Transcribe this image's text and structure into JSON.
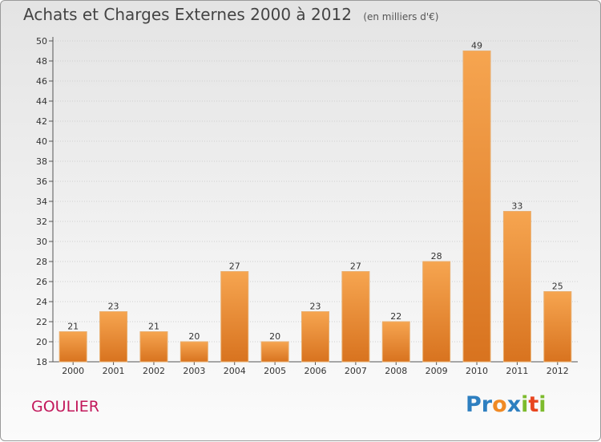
{
  "header": {
    "title": "Achats et Charges Externes 2000 à 2012",
    "unit": "(en milliers d'€)"
  },
  "footer": {
    "city": "GOULIER",
    "logo_text": "Proxiti"
  },
  "colors": {
    "bar_top": "#f6a550",
    "bar_bottom": "#d8731f",
    "city": "#c2185b",
    "logo": [
      "#2e7fc0",
      "#2e7fc0",
      "#f08a24",
      "#2e7fc0",
      "#7dbb2d",
      "#e8451f",
      "#7dbb2d"
    ]
  },
  "chart_data": {
    "type": "bar",
    "title": "Achats et Charges Externes 2000 à 2012",
    "subtitle": "(en milliers d'€)",
    "xlabel": "",
    "ylabel": "",
    "categories": [
      "2000",
      "2001",
      "2002",
      "2003",
      "2004",
      "2005",
      "2006",
      "2007",
      "2008",
      "2009",
      "2010",
      "2011",
      "2012"
    ],
    "values": [
      21,
      23,
      21,
      20,
      27,
      20,
      23,
      27,
      22,
      28,
      49,
      33,
      25
    ],
    "ylim": [
      18,
      50
    ],
    "yticks": [
      18,
      20,
      22,
      24,
      26,
      28,
      30,
      32,
      34,
      36,
      38,
      40,
      42,
      44,
      46,
      48,
      50
    ],
    "grid": true,
    "data_labels": true
  }
}
